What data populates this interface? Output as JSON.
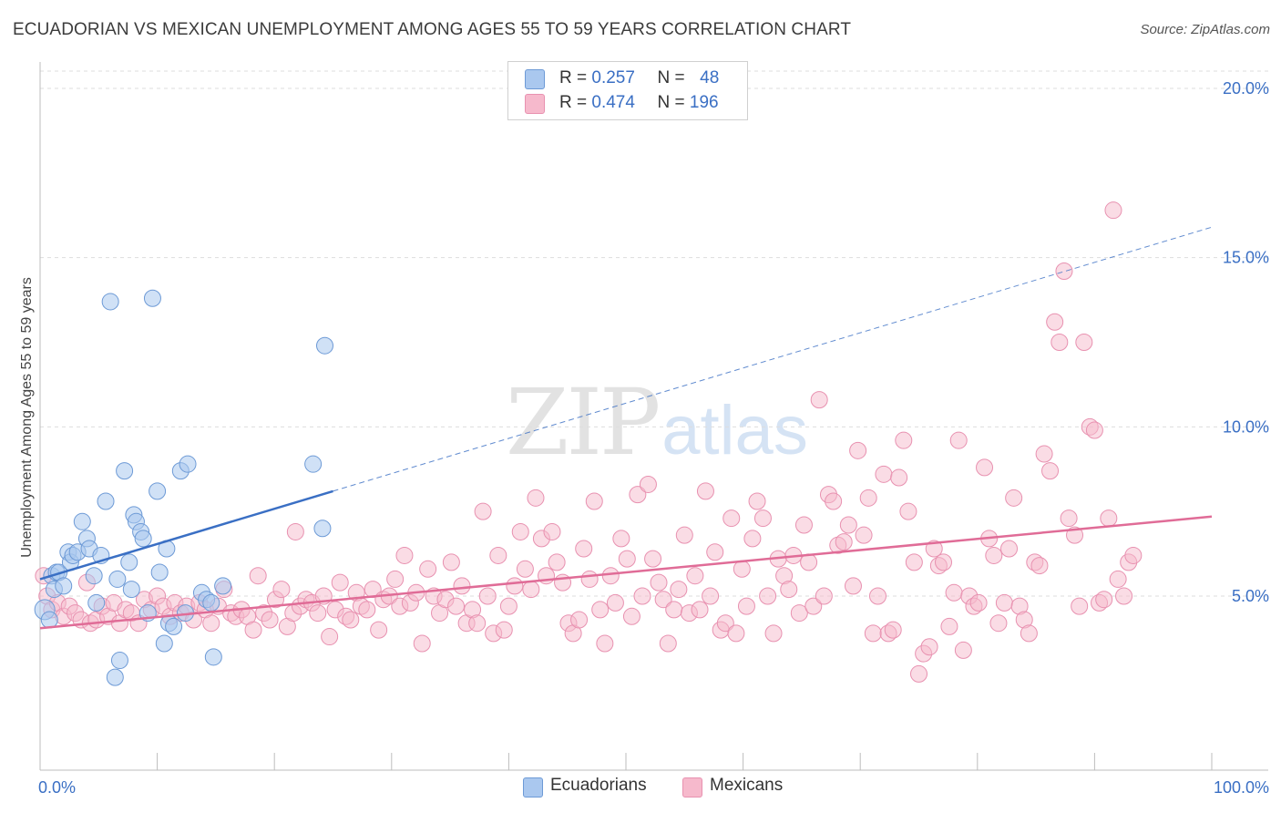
{
  "title": "ECUADORIAN VS MEXICAN UNEMPLOYMENT AMONG AGES 55 TO 59 YEARS CORRELATION CHART",
  "source": "Source: ZipAtlas.com",
  "watermark": {
    "zip": "ZIP",
    "atlas": "atlas"
  },
  "colors": {
    "blue": "#3a6fc4",
    "blue_fill": "#aac8ef",
    "blue_stroke": "#6d9ad6",
    "pink": "#e06c97",
    "pink_fill": "#f6b9cc",
    "pink_stroke": "#e891b0",
    "grid": "#dddddd",
    "tick_label": "#3a6fc4"
  },
  "legend_top": [
    {
      "r_label": "R =",
      "r_value": "0.257",
      "n_label": "N =",
      "n_value": "48"
    },
    {
      "r_label": "R =",
      "r_value": "0.474",
      "n_label": "N =",
      "n_value": "196"
    }
  ],
  "legend_bottom": [
    "Ecuadorians",
    "Mexicans"
  ],
  "chart_data": {
    "type": "scatter",
    "title": "ECUADORIAN VS MEXICAN UNEMPLOYMENT AMONG AGES 55 TO 59 YEARS CORRELATION CHART",
    "xlabel": "",
    "ylabel": "Unemployment Among Ages 55 to 59 years",
    "xlim": [
      0,
      100
    ],
    "ylim": [
      0,
      20.5
    ],
    "x_tick_labels": [
      "0.0%",
      "100.0%"
    ],
    "y_ticks": [
      5,
      10,
      15,
      20
    ],
    "y_tick_labels": [
      "5.0%",
      "10.0%",
      "15.0%",
      "20.0%"
    ],
    "grid": true,
    "legend_position": "top-center",
    "series": [
      {
        "name": "Ecuadorians",
        "r": 0.257,
        "n": 48,
        "trend": {
          "x": [
            0,
            25
          ],
          "y": [
            5.5,
            8.1
          ],
          "extended_to": [
            100,
            15.9
          ]
        },
        "points": [
          [
            0.4,
            4.6
          ],
          [
            0.8,
            4.3
          ],
          [
            1.0,
            5.6
          ],
          [
            1.2,
            5.2
          ],
          [
            1.4,
            5.7
          ],
          [
            1.6,
            5.7
          ],
          [
            2.0,
            5.3
          ],
          [
            2.4,
            6.3
          ],
          [
            2.6,
            6.0
          ],
          [
            2.8,
            6.2
          ],
          [
            3.2,
            6.3
          ],
          [
            3.6,
            7.2
          ],
          [
            4.0,
            6.7
          ],
          [
            4.2,
            6.4
          ],
          [
            4.6,
            5.6
          ],
          [
            4.8,
            4.8
          ],
          [
            5.2,
            6.2
          ],
          [
            5.6,
            7.8
          ],
          [
            6.0,
            13.7
          ],
          [
            6.4,
            2.6
          ],
          [
            6.6,
            5.5
          ],
          [
            6.8,
            3.1
          ],
          [
            7.2,
            8.7
          ],
          [
            7.6,
            6.0
          ],
          [
            7.8,
            5.2
          ],
          [
            8.0,
            7.4
          ],
          [
            8.2,
            7.2
          ],
          [
            8.6,
            6.9
          ],
          [
            8.8,
            6.7
          ],
          [
            9.2,
            4.5
          ],
          [
            9.6,
            13.8
          ],
          [
            10.0,
            8.1
          ],
          [
            10.2,
            5.7
          ],
          [
            10.6,
            3.6
          ],
          [
            10.8,
            6.4
          ],
          [
            11.0,
            4.2
          ],
          [
            11.4,
            4.1
          ],
          [
            12.0,
            8.7
          ],
          [
            12.4,
            4.5
          ],
          [
            12.6,
            8.9
          ],
          [
            13.8,
            5.1
          ],
          [
            14.2,
            4.9
          ],
          [
            14.6,
            4.8
          ],
          [
            14.8,
            3.2
          ],
          [
            15.6,
            5.3
          ],
          [
            23.3,
            8.9
          ],
          [
            24.1,
            7.0
          ],
          [
            24.3,
            12.4
          ]
        ]
      },
      {
        "name": "Mexicans",
        "r": 0.474,
        "n": 196,
        "trend": {
          "x": [
            0,
            100
          ],
          "y": [
            4.05,
            7.35
          ]
        },
        "points": [
          [
            0.3,
            5.6
          ],
          [
            0.6,
            5.0
          ],
          [
            1.0,
            4.6
          ],
          [
            1.5,
            4.8
          ],
          [
            2.0,
            4.4
          ],
          [
            2.5,
            4.7
          ],
          [
            3.0,
            4.5
          ],
          [
            3.5,
            4.3
          ],
          [
            4.0,
            5.4
          ],
          [
            4.3,
            4.2
          ],
          [
            4.8,
            4.3
          ],
          [
            5.3,
            4.7
          ],
          [
            5.8,
            4.4
          ],
          [
            6.3,
            4.8
          ],
          [
            6.8,
            4.2
          ],
          [
            7.3,
            4.6
          ],
          [
            7.8,
            4.5
          ],
          [
            8.4,
            4.2
          ],
          [
            8.9,
            4.9
          ],
          [
            9.5,
            4.6
          ],
          [
            10.0,
            5.0
          ],
          [
            10.5,
            4.7
          ],
          [
            11.1,
            4.4
          ],
          [
            11.5,
            4.8
          ],
          [
            12.0,
            4.5
          ],
          [
            12.5,
            4.7
          ],
          [
            13.1,
            4.3
          ],
          [
            13.6,
            4.8
          ],
          [
            14.1,
            4.6
          ],
          [
            14.6,
            4.2
          ],
          [
            15.2,
            4.7
          ],
          [
            15.7,
            5.2
          ],
          [
            16.3,
            4.5
          ],
          [
            16.7,
            4.4
          ],
          [
            17.2,
            4.6
          ],
          [
            17.7,
            4.4
          ],
          [
            18.2,
            4.0
          ],
          [
            18.6,
            5.6
          ],
          [
            19.1,
            4.5
          ],
          [
            19.6,
            4.3
          ],
          [
            20.1,
            4.9
          ],
          [
            20.6,
            5.2
          ],
          [
            21.1,
            4.1
          ],
          [
            21.6,
            4.5
          ],
          [
            21.8,
            6.9
          ],
          [
            22.2,
            4.7
          ],
          [
            22.7,
            4.9
          ],
          [
            23.2,
            4.8
          ],
          [
            23.7,
            4.5
          ],
          [
            24.2,
            5.0
          ],
          [
            24.7,
            3.8
          ],
          [
            25.2,
            4.6
          ],
          [
            25.6,
            5.4
          ],
          [
            26.1,
            4.4
          ],
          [
            26.5,
            4.3
          ],
          [
            27.0,
            5.1
          ],
          [
            27.4,
            4.7
          ],
          [
            27.9,
            4.6
          ],
          [
            28.4,
            5.2
          ],
          [
            28.9,
            4.0
          ],
          [
            29.3,
            4.9
          ],
          [
            29.8,
            5.0
          ],
          [
            30.3,
            5.5
          ],
          [
            30.7,
            4.7
          ],
          [
            31.1,
            6.2
          ],
          [
            31.6,
            4.8
          ],
          [
            32.1,
            5.1
          ],
          [
            32.6,
            3.6
          ],
          [
            33.1,
            5.8
          ],
          [
            33.6,
            5.0
          ],
          [
            34.1,
            4.5
          ],
          [
            34.6,
            4.9
          ],
          [
            35.1,
            6.0
          ],
          [
            35.5,
            4.7
          ],
          [
            36.0,
            5.3
          ],
          [
            36.4,
            4.2
          ],
          [
            36.9,
            4.6
          ],
          [
            37.3,
            4.2
          ],
          [
            37.8,
            7.5
          ],
          [
            38.2,
            5.0
          ],
          [
            38.7,
            3.9
          ],
          [
            39.1,
            6.2
          ],
          [
            39.6,
            4.0
          ],
          [
            40.0,
            4.7
          ],
          [
            40.5,
            5.3
          ],
          [
            41.0,
            6.9
          ],
          [
            41.4,
            5.8
          ],
          [
            41.9,
            5.2
          ],
          [
            42.3,
            7.9
          ],
          [
            42.8,
            6.7
          ],
          [
            43.2,
            5.6
          ],
          [
            43.7,
            6.9
          ],
          [
            44.1,
            6.0
          ],
          [
            44.6,
            5.4
          ],
          [
            45.1,
            4.2
          ],
          [
            45.5,
            3.9
          ],
          [
            46.0,
            4.3
          ],
          [
            46.4,
            6.4
          ],
          [
            46.9,
            5.5
          ],
          [
            47.3,
            7.8
          ],
          [
            47.8,
            4.6
          ],
          [
            48.2,
            3.6
          ],
          [
            48.7,
            5.6
          ],
          [
            49.1,
            4.8
          ],
          [
            49.6,
            6.7
          ],
          [
            50.1,
            6.1
          ],
          [
            50.5,
            4.4
          ],
          [
            51.0,
            8.0
          ],
          [
            51.4,
            5.0
          ],
          [
            51.9,
            8.3
          ],
          [
            52.3,
            6.1
          ],
          [
            52.8,
            5.4
          ],
          [
            53.2,
            4.9
          ],
          [
            53.6,
            3.6
          ],
          [
            54.1,
            4.6
          ],
          [
            54.5,
            5.2
          ],
          [
            55.0,
            6.8
          ],
          [
            55.4,
            4.5
          ],
          [
            55.9,
            5.6
          ],
          [
            56.3,
            4.6
          ],
          [
            56.8,
            8.1
          ],
          [
            57.2,
            5.0
          ],
          [
            57.6,
            6.3
          ],
          [
            58.1,
            4.0
          ],
          [
            58.5,
            4.2
          ],
          [
            59.0,
            7.3
          ],
          [
            59.4,
            3.9
          ],
          [
            59.9,
            5.8
          ],
          [
            60.3,
            4.7
          ],
          [
            60.8,
            6.7
          ],
          [
            61.2,
            7.8
          ],
          [
            61.7,
            7.3
          ],
          [
            62.1,
            5.0
          ],
          [
            62.6,
            3.9
          ],
          [
            63.0,
            6.1
          ],
          [
            63.5,
            5.6
          ],
          [
            63.9,
            5.2
          ],
          [
            64.3,
            6.2
          ],
          [
            64.8,
            4.5
          ],
          [
            65.2,
            7.1
          ],
          [
            65.6,
            6.0
          ],
          [
            66.0,
            4.7
          ],
          [
            66.5,
            10.8
          ],
          [
            66.9,
            5.0
          ],
          [
            67.3,
            8.0
          ],
          [
            67.7,
            7.8
          ],
          [
            68.1,
            6.5
          ],
          [
            68.6,
            6.6
          ],
          [
            69.0,
            7.1
          ],
          [
            69.4,
            5.3
          ],
          [
            69.8,
            9.3
          ],
          [
            70.3,
            6.8
          ],
          [
            70.7,
            7.9
          ],
          [
            71.1,
            3.9
          ],
          [
            71.5,
            5.0
          ],
          [
            72.0,
            8.6
          ],
          [
            72.4,
            3.9
          ],
          [
            72.8,
            4.0
          ],
          [
            73.3,
            8.5
          ],
          [
            73.7,
            9.6
          ],
          [
            74.1,
            7.5
          ],
          [
            74.6,
            6.0
          ],
          [
            75.0,
            2.7
          ],
          [
            75.4,
            3.3
          ],
          [
            75.9,
            3.5
          ],
          [
            76.3,
            6.4
          ],
          [
            76.7,
            5.9
          ],
          [
            77.1,
            6.0
          ],
          [
            77.6,
            4.1
          ],
          [
            78.0,
            5.1
          ],
          [
            78.4,
            9.6
          ],
          [
            78.8,
            3.4
          ],
          [
            79.3,
            5.0
          ],
          [
            79.7,
            4.7
          ],
          [
            80.1,
            4.8
          ],
          [
            80.6,
            8.8
          ],
          [
            81.0,
            6.7
          ],
          [
            81.4,
            6.2
          ],
          [
            81.8,
            4.2
          ],
          [
            82.3,
            4.8
          ],
          [
            82.7,
            6.4
          ],
          [
            83.1,
            7.9
          ],
          [
            83.6,
            4.7
          ],
          [
            84.0,
            4.3
          ],
          [
            84.4,
            3.9
          ],
          [
            84.9,
            6.0
          ],
          [
            85.3,
            5.9
          ],
          [
            85.7,
            9.2
          ],
          [
            86.2,
            8.7
          ],
          [
            86.6,
            13.1
          ],
          [
            87.0,
            12.5
          ],
          [
            87.4,
            14.6
          ],
          [
            87.8,
            7.3
          ],
          [
            88.3,
            6.8
          ],
          [
            88.7,
            4.7
          ],
          [
            89.1,
            12.5
          ],
          [
            89.6,
            10.0
          ],
          [
            90.0,
            9.9
          ],
          [
            90.4,
            4.8
          ],
          [
            90.8,
            4.9
          ],
          [
            91.2,
            7.3
          ],
          [
            91.6,
            16.4
          ],
          [
            92.0,
            5.5
          ],
          [
            92.5,
            5.0
          ],
          [
            92.9,
            6.0
          ],
          [
            93.3,
            6.2
          ]
        ]
      }
    ]
  }
}
